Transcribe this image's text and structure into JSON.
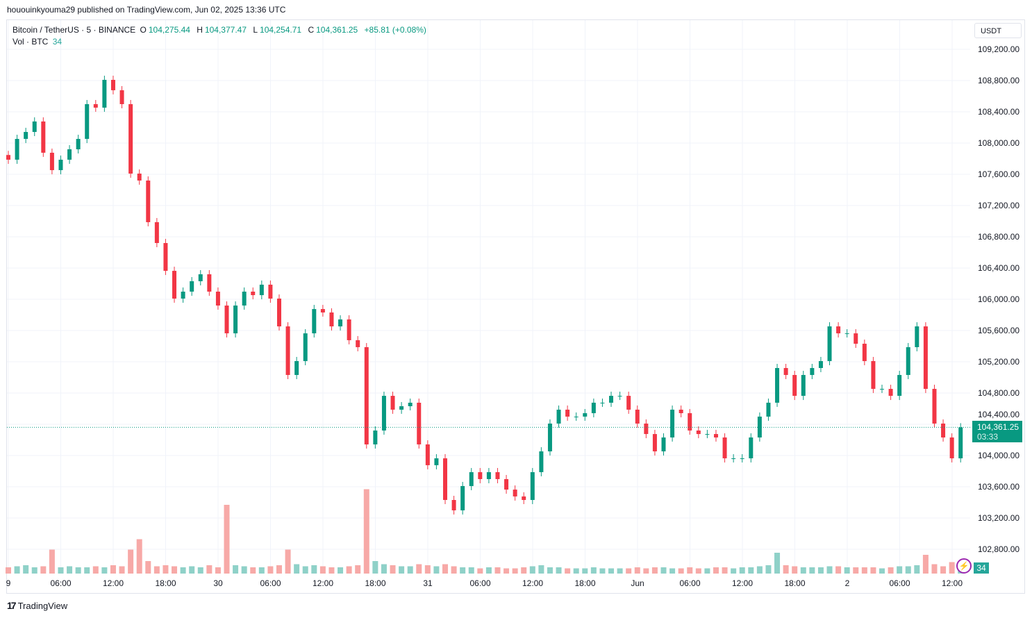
{
  "header": {
    "published": "hououinkyouma29 published on TradingView.com, Jun 02, 2025 13:36 UTC"
  },
  "legend": {
    "symbol": "Bitcoin / TetherUS · 5 · BINANCE",
    "o_label": "O",
    "o": "104,275.44",
    "h_label": "H",
    "h": "104,377.47",
    "l_label": "L",
    "l": "104,254.71",
    "c_label": "C",
    "c": "104,361.25",
    "change": "+85.81 (+0.08%)",
    "vol_label": "Vol · BTC",
    "vol": "34"
  },
  "price_axis": {
    "currency": "USDT",
    "ticks": [
      "109,200.00",
      "108,800.00",
      "108,400.00",
      "108,000.00",
      "107,600.00",
      "107,200.00",
      "106,800.00",
      "106,400.00",
      "106,000.00",
      "105,600.00",
      "105,200.00",
      "104,800.00",
      "104,400.00",
      "104,000.00",
      "103,600.00",
      "103,200.00",
      "102,800.00"
    ],
    "last_price": "104,361.25",
    "countdown": "03:33",
    "volume_badge": "34"
  },
  "time_axis": {
    "ticks": [
      "9",
      "06:00",
      "12:00",
      "18:00",
      "30",
      "06:00",
      "12:00",
      "18:00",
      "31",
      "06:00",
      "12:00",
      "18:00",
      "Jun",
      "06:00",
      "12:00",
      "18:00",
      "2",
      "06:00",
      "12:00"
    ]
  },
  "footer": {
    "brand": "TradingView"
  },
  "colors": {
    "up": "#089981",
    "down": "#f23645",
    "up_volume": "#8fd1c8",
    "down_volume": "#f7a9a7",
    "last_price": "#089981",
    "alert": "#9c27b0"
  },
  "chart_data": {
    "type": "candlestick",
    "symbol": "BTCUSDT",
    "start": "2025-05-29 00:00",
    "interval": "1h",
    "ylim": [
      102600,
      109400
    ],
    "grid": true,
    "last": 104361.25,
    "close": [
      107787,
      108053,
      108142,
      108276,
      107876,
      107653,
      107787,
      107920,
      108053,
      108498,
      108453,
      108809,
      108676,
      108498,
      107609,
      107520,
      106987,
      106720,
      106364,
      106009,
      106098,
      106231,
      106320,
      106098,
      105920,
      105564,
      105920,
      106098,
      106053,
      106187,
      106009,
      105653,
      105031,
      105209,
      105564,
      105875,
      105831,
      105653,
      105742,
      105476,
      105387,
      104142,
      104320,
      104764,
      104587,
      104631,
      104676,
      104142,
      103876,
      103964,
      103431,
      103298,
      103609,
      103787,
      103698,
      103787,
      103698,
      103564,
      103476,
      103431,
      103787,
      104053,
      104409,
      104587,
      104498,
      104498,
      104542,
      104676,
      104676,
      104764,
      104764,
      104587,
      104409,
      104275,
      104053,
      104231,
      104587,
      104542,
      104320,
      104275,
      104275,
      104231,
      103964,
      103964,
      103964,
      104231,
      104498,
      104676,
      105120,
      105031,
      104764,
      105031,
      105120,
      105209,
      105653,
      105564,
      105564,
      105431,
      105209,
      104853,
      104853,
      104764,
      105031,
      105387,
      105653,
      104853,
      104409,
      104231,
      103964,
      104361
    ],
    "volume": [
      60,
      70,
      80,
      60,
      70,
      230,
      60,
      70,
      60,
      60,
      70,
      60,
      80,
      70,
      230,
      330,
      120,
      70,
      80,
      70,
      60,
      70,
      60,
      80,
      60,
      660,
      80,
      70,
      60,
      60,
      70,
      80,
      230,
      90,
      70,
      80,
      70,
      60,
      60,
      70,
      80,
      810,
      120,
      90,
      80,
      70,
      70,
      90,
      80,
      70,
      90,
      70,
      60,
      60,
      50,
      60,
      60,
      50,
      50,
      60,
      70,
      80,
      60,
      60,
      50,
      50,
      50,
      60,
      50,
      50,
      50,
      50,
      60,
      50,
      60,
      60,
      50,
      50,
      60,
      50,
      50,
      60,
      60,
      50,
      60,
      60,
      70,
      80,
      200,
      80,
      70,
      60,
      60,
      60,
      70,
      70,
      60,
      60,
      60,
      60,
      50,
      60,
      70,
      70,
      80,
      180,
      90,
      70,
      110,
      34
    ],
    "volume_ylim": [
      0,
      2200
    ]
  }
}
